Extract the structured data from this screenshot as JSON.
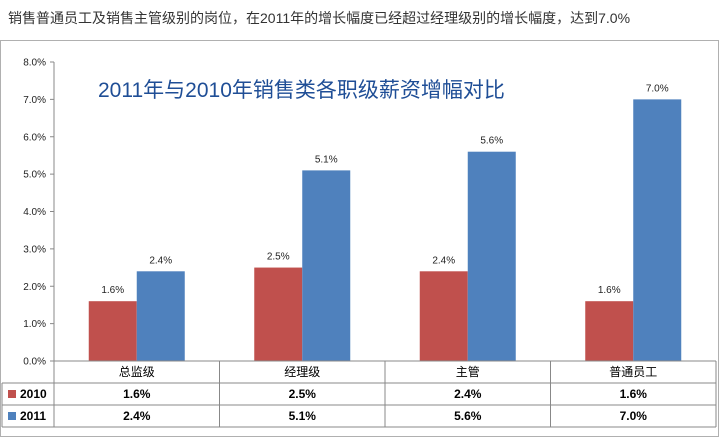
{
  "headline": "销售普通员工及销售主管级别的岗位，在2011年的增长幅度已经超过经理级别的增长幅度，达到7.0%",
  "chart_data": {
    "type": "bar",
    "title": "2011年与2010年销售类各职级薪资增幅对比",
    "categories": [
      "总监级",
      "经理级",
      "主管",
      "普通员工"
    ],
    "series": [
      {
        "name": "2010",
        "values": [
          1.6,
          2.5,
          2.4,
          1.6
        ],
        "labels": [
          "1.6%",
          "2.5%",
          "2.4%",
          "1.6%"
        ],
        "color": "#c0504d"
      },
      {
        "name": "2011",
        "values": [
          2.4,
          5.1,
          5.6,
          7.0
        ],
        "labels": [
          "2.4%",
          "5.1%",
          "5.6%",
          "7.0%"
        ],
        "color": "#4f81bd"
      }
    ],
    "ylim": [
      0,
      8
    ],
    "yticks": [
      "0.0%",
      "1.0%",
      "2.0%",
      "3.0%",
      "4.0%",
      "5.0%",
      "6.0%",
      "7.0%",
      "8.0%"
    ],
    "data_table": true,
    "legend": "data-table-rows"
  }
}
